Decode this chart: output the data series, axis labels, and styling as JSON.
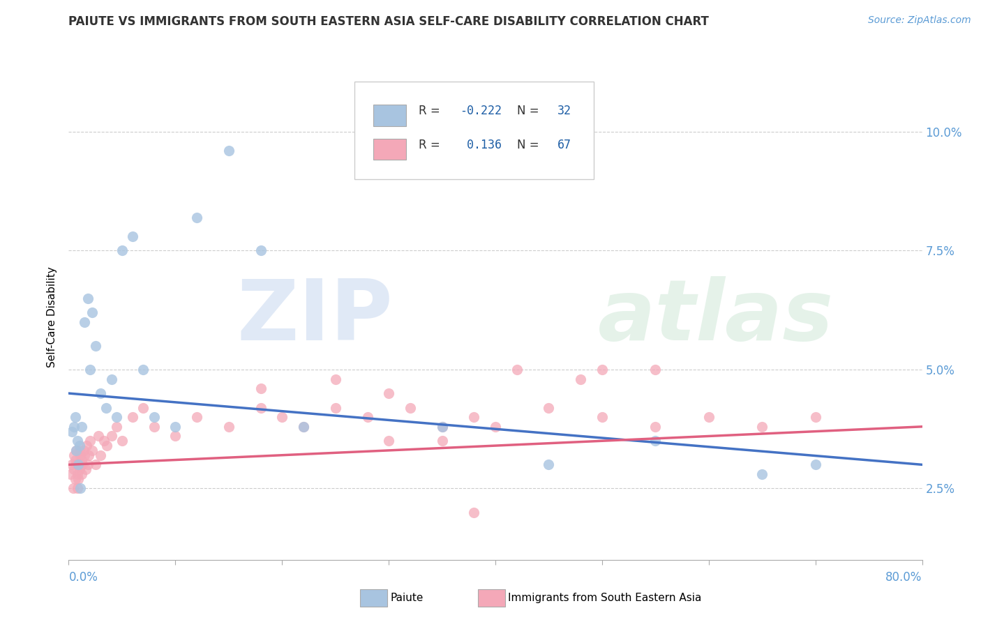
{
  "title": "PAIUTE VS IMMIGRANTS FROM SOUTH EASTERN ASIA SELF-CARE DISABILITY CORRELATION CHART",
  "source": "Source: ZipAtlas.com",
  "ylabel": "Self-Care Disability",
  "right_yticks": [
    "2.5%",
    "5.0%",
    "7.5%",
    "10.0%"
  ],
  "right_ytick_vals": [
    0.025,
    0.05,
    0.075,
    0.1
  ],
  "xmin": 0.0,
  "xmax": 0.8,
  "ymin": 0.01,
  "ymax": 0.112,
  "legend_label1": "Paiute",
  "legend_label2": "Immigrants from South Eastern Asia",
  "r1": "-0.222",
  "n1": "32",
  "r2": "0.136",
  "n2": "67",
  "color_blue": "#a8c4e0",
  "color_pink": "#f4a8b8",
  "line_blue": "#4472c4",
  "line_pink": "#e06080",
  "watermark_zip": "ZIP",
  "watermark_atlas": "atlas",
  "paiute_x": [
    0.003,
    0.005,
    0.006,
    0.007,
    0.008,
    0.009,
    0.01,
    0.011,
    0.012,
    0.015,
    0.018,
    0.02,
    0.022,
    0.025,
    0.03,
    0.035,
    0.04,
    0.045,
    0.05,
    0.06,
    0.07,
    0.08,
    0.1,
    0.12,
    0.15,
    0.18,
    0.22,
    0.35,
    0.45,
    0.55,
    0.65,
    0.7
  ],
  "paiute_y": [
    0.037,
    0.038,
    0.04,
    0.033,
    0.035,
    0.03,
    0.034,
    0.025,
    0.038,
    0.06,
    0.065,
    0.05,
    0.062,
    0.055,
    0.045,
    0.042,
    0.048,
    0.04,
    0.075,
    0.078,
    0.05,
    0.04,
    0.038,
    0.082,
    0.096,
    0.075,
    0.038,
    0.038,
    0.03,
    0.035,
    0.028,
    0.03
  ],
  "sea_x": [
    0.002,
    0.003,
    0.004,
    0.005,
    0.005,
    0.006,
    0.006,
    0.007,
    0.007,
    0.008,
    0.008,
    0.009,
    0.009,
    0.01,
    0.01,
    0.011,
    0.011,
    0.012,
    0.012,
    0.013,
    0.014,
    0.015,
    0.016,
    0.017,
    0.018,
    0.019,
    0.02,
    0.022,
    0.025,
    0.028,
    0.03,
    0.033,
    0.036,
    0.04,
    0.045,
    0.05,
    0.06,
    0.07,
    0.08,
    0.1,
    0.12,
    0.15,
    0.18,
    0.2,
    0.22,
    0.25,
    0.28,
    0.3,
    0.32,
    0.35,
    0.38,
    0.4,
    0.45,
    0.5,
    0.55,
    0.6,
    0.65,
    0.7,
    0.55,
    0.48,
    0.38,
    0.3,
    0.35,
    0.25,
    0.42,
    0.18,
    0.5
  ],
  "sea_y": [
    0.028,
    0.03,
    0.025,
    0.029,
    0.032,
    0.031,
    0.027,
    0.03,
    0.033,
    0.028,
    0.025,
    0.03,
    0.027,
    0.029,
    0.033,
    0.03,
    0.032,
    0.028,
    0.031,
    0.03,
    0.033,
    0.032,
    0.029,
    0.034,
    0.03,
    0.032,
    0.035,
    0.033,
    0.03,
    0.036,
    0.032,
    0.035,
    0.034,
    0.036,
    0.038,
    0.035,
    0.04,
    0.042,
    0.038,
    0.036,
    0.04,
    0.038,
    0.042,
    0.04,
    0.038,
    0.042,
    0.04,
    0.035,
    0.042,
    0.038,
    0.04,
    0.038,
    0.042,
    0.04,
    0.038,
    0.04,
    0.038,
    0.04,
    0.05,
    0.048,
    0.02,
    0.045,
    0.035,
    0.048,
    0.05,
    0.046,
    0.05
  ]
}
